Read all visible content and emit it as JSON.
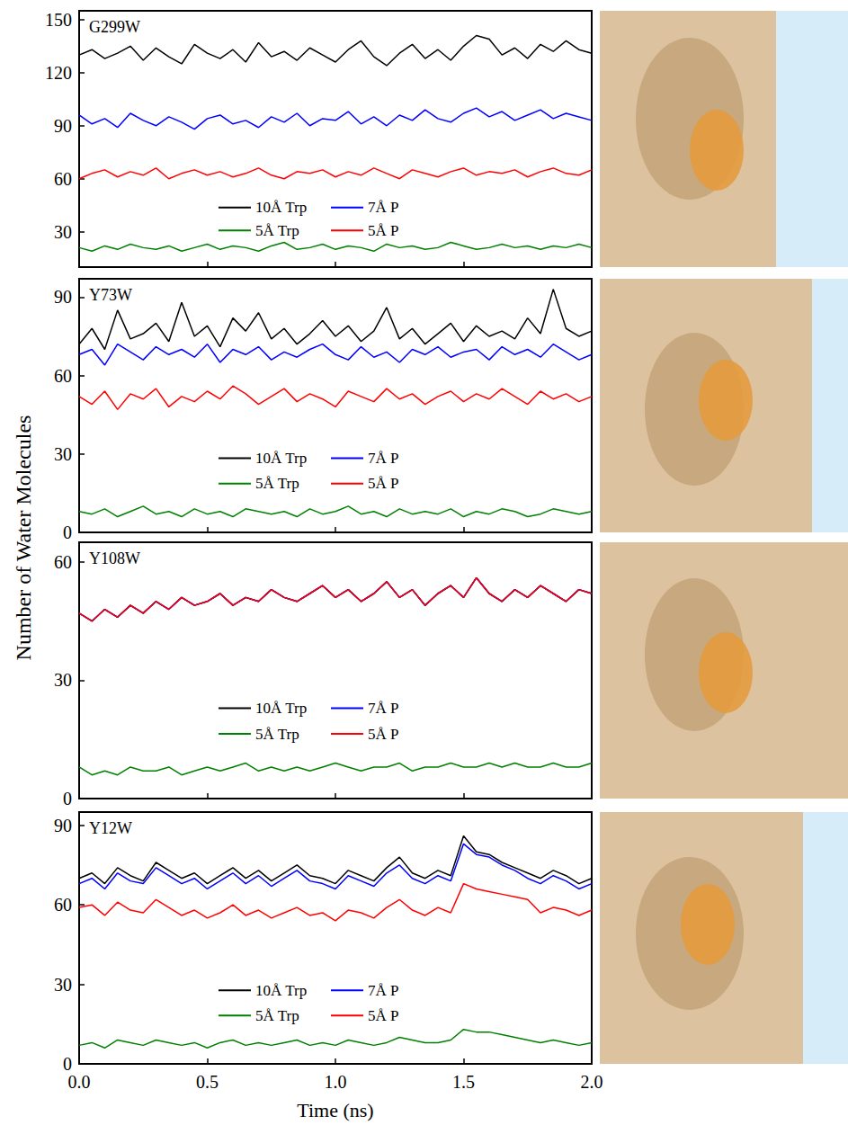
{
  "y_label": "Number of Water Molecules",
  "chart_data": [
    {
      "type": "line",
      "title": "G299W",
      "x": [
        0,
        0.05,
        0.1,
        0.15,
        0.2,
        0.25,
        0.3,
        0.35,
        0.4,
        0.45,
        0.5,
        0.55,
        0.6,
        0.65,
        0.7,
        0.75,
        0.8,
        0.85,
        0.9,
        0.95,
        1,
        1.05,
        1.1,
        1.15,
        1.2,
        1.25,
        1.3,
        1.35,
        1.4,
        1.45,
        1.5,
        1.55,
        1.6,
        1.65,
        1.7,
        1.75,
        1.8,
        1.85,
        1.9,
        1.95,
        2
      ],
      "xlim": [
        0,
        2
      ],
      "xticks": [
        0,
        0.5,
        1,
        1.5,
        2
      ],
      "ylim": [
        10,
        155
      ],
      "yticks": [
        30,
        60,
        90,
        120,
        150
      ],
      "tick_labels": "y",
      "grid": false,
      "legend": "bottom",
      "series": [
        {
          "name": "10Å Trp",
          "color": "#000000",
          "values": [
            130,
            133,
            128,
            131,
            135,
            127,
            134,
            129,
            125,
            136,
            131,
            128,
            133,
            126,
            137,
            129,
            132,
            127,
            134,
            130,
            126,
            133,
            138,
            129,
            124,
            131,
            136,
            128,
            133,
            127,
            135,
            141,
            139,
            130,
            134,
            128,
            136,
            132,
            138,
            133,
            131
          ]
        },
        {
          "name": "7Å P",
          "color": "#0000ff",
          "values": [
            96,
            91,
            94,
            89,
            97,
            93,
            90,
            95,
            92,
            88,
            94,
            96,
            91,
            93,
            89,
            95,
            92,
            97,
            90,
            94,
            93,
            98,
            91,
            95,
            90,
            96,
            93,
            99,
            94,
            92,
            97,
            100,
            95,
            98,
            93,
            96,
            99,
            94,
            97,
            95,
            93
          ]
        },
        {
          "name": "5Å Trp",
          "color": "#008000",
          "values": [
            21,
            19,
            22,
            20,
            23,
            21,
            20,
            22,
            19,
            21,
            23,
            20,
            22,
            21,
            19,
            22,
            24,
            20,
            21,
            23,
            20,
            22,
            21,
            19,
            23,
            21,
            22,
            20,
            21,
            24,
            22,
            20,
            21,
            23,
            21,
            22,
            20,
            22,
            21,
            23,
            21
          ]
        },
        {
          "name": "5Å P",
          "color": "#ff0000",
          "values": [
            60,
            63,
            65,
            61,
            64,
            62,
            66,
            60,
            63,
            65,
            62,
            64,
            61,
            63,
            66,
            62,
            60,
            64,
            63,
            65,
            61,
            64,
            62,
            66,
            63,
            60,
            65,
            63,
            61,
            64,
            66,
            62,
            64,
            63,
            65,
            61,
            64,
            66,
            63,
            62,
            65
          ]
        }
      ]
    },
    {
      "type": "line",
      "title": "Y73W",
      "x": [
        0,
        0.05,
        0.1,
        0.15,
        0.2,
        0.25,
        0.3,
        0.35,
        0.4,
        0.45,
        0.5,
        0.55,
        0.6,
        0.65,
        0.7,
        0.75,
        0.8,
        0.85,
        0.9,
        0.95,
        1,
        1.05,
        1.1,
        1.15,
        1.2,
        1.25,
        1.3,
        1.35,
        1.4,
        1.45,
        1.5,
        1.55,
        1.6,
        1.65,
        1.7,
        1.75,
        1.8,
        1.85,
        1.9,
        1.95,
        2
      ],
      "xlim": [
        0,
        2
      ],
      "xticks": [
        0,
        0.5,
        1,
        1.5,
        2
      ],
      "ylim": [
        0,
        97
      ],
      "yticks": [
        0,
        30,
        60,
        90
      ],
      "tick_labels": "y",
      "grid": false,
      "legend": "bottom",
      "series": [
        {
          "name": "10Å Trp",
          "color": "#000000",
          "values": [
            72,
            78,
            70,
            85,
            74,
            76,
            80,
            73,
            88,
            75,
            79,
            71,
            82,
            77,
            84,
            74,
            78,
            72,
            76,
            81,
            75,
            79,
            73,
            77,
            86,
            74,
            78,
            72,
            76,
            80,
            73,
            79,
            75,
            77,
            74,
            82,
            76,
            93,
            78,
            75,
            77
          ]
        },
        {
          "name": "7Å P",
          "color": "#0000ff",
          "values": [
            68,
            70,
            64,
            72,
            69,
            66,
            71,
            68,
            70,
            67,
            72,
            65,
            70,
            68,
            71,
            66,
            69,
            67,
            70,
            72,
            68,
            66,
            71,
            67,
            69,
            65,
            70,
            68,
            71,
            67,
            69,
            70,
            66,
            71,
            68,
            70,
            67,
            72,
            69,
            66,
            68
          ]
        },
        {
          "name": "5Å Trp",
          "color": "#008000",
          "values": [
            8,
            7,
            9,
            6,
            8,
            10,
            7,
            8,
            6,
            9,
            7,
            8,
            6,
            9,
            8,
            7,
            8,
            6,
            9,
            7,
            8,
            10,
            7,
            8,
            6,
            9,
            7,
            8,
            7,
            9,
            6,
            8,
            7,
            9,
            8,
            6,
            7,
            9,
            8,
            7,
            8
          ]
        },
        {
          "name": "5Å P",
          "color": "#ff0000",
          "values": [
            52,
            49,
            54,
            47,
            53,
            51,
            55,
            48,
            52,
            50,
            54,
            51,
            56,
            53,
            49,
            52,
            55,
            50,
            53,
            51,
            48,
            54,
            52,
            50,
            55,
            51,
            53,
            49,
            52,
            54,
            50,
            53,
            51,
            55,
            52,
            49,
            54,
            51,
            53,
            50,
            52
          ]
        }
      ]
    },
    {
      "type": "line",
      "title": "Y108W",
      "x": [
        0,
        0.05,
        0.1,
        0.15,
        0.2,
        0.25,
        0.3,
        0.35,
        0.4,
        0.45,
        0.5,
        0.55,
        0.6,
        0.65,
        0.7,
        0.75,
        0.8,
        0.85,
        0.9,
        0.95,
        1,
        1.05,
        1.1,
        1.15,
        1.2,
        1.25,
        1.3,
        1.35,
        1.4,
        1.45,
        1.5,
        1.55,
        1.6,
        1.65,
        1.7,
        1.75,
        1.8,
        1.85,
        1.9,
        1.95,
        2
      ],
      "xlim": [
        0,
        2
      ],
      "xticks": [
        0,
        0.5,
        1,
        1.5,
        2
      ],
      "ylim": [
        0,
        65
      ],
      "yticks": [
        0,
        30,
        60
      ],
      "tick_labels": "y",
      "grid": false,
      "legend": "bottom",
      "series": [
        {
          "name": "10Å Trp",
          "color": "#000000",
          "values": [
            47,
            45,
            48,
            46,
            49,
            47,
            50,
            48,
            51,
            49,
            50,
            52,
            49,
            51,
            50,
            53,
            51,
            50,
            52,
            54,
            51,
            53,
            50,
            52,
            55,
            51,
            53,
            49,
            52,
            54,
            51,
            56,
            52,
            50,
            53,
            51,
            54,
            52,
            50,
            53,
            52
          ]
        },
        {
          "name": "7Å P",
          "color": "#0000ff",
          "values": [
            47,
            45,
            48,
            46,
            49,
            47,
            50,
            48,
            51,
            49,
            50,
            52,
            49,
            51,
            50,
            53,
            51,
            50,
            52,
            54,
            51,
            53,
            50,
            52,
            55,
            51,
            53,
            49,
            52,
            54,
            51,
            56,
            52,
            50,
            53,
            51,
            54,
            52,
            50,
            53,
            52
          ]
        },
        {
          "name": "5Å Trp",
          "color": "#008000",
          "values": [
            8,
            6,
            7,
            6,
            8,
            7,
            7,
            8,
            6,
            7,
            8,
            7,
            8,
            9,
            7,
            8,
            7,
            8,
            7,
            8,
            9,
            8,
            7,
            8,
            8,
            9,
            7,
            8,
            8,
            9,
            8,
            8,
            9,
            8,
            9,
            8,
            8,
            9,
            8,
            8,
            9
          ]
        },
        {
          "name": "5Å P",
          "color": "#ff0000",
          "values": [
            47,
            45,
            48,
            46,
            49,
            47,
            50,
            48,
            51,
            49,
            50,
            52,
            49,
            51,
            50,
            53,
            51,
            50,
            52,
            54,
            51,
            53,
            50,
            52,
            55,
            51,
            53,
            49,
            52,
            54,
            51,
            56,
            52,
            50,
            53,
            51,
            54,
            52,
            50,
            53,
            52
          ]
        }
      ]
    },
    {
      "type": "line",
      "title": "Y12W",
      "x_label": "Time (ns)",
      "x": [
        0,
        0.05,
        0.1,
        0.15,
        0.2,
        0.25,
        0.3,
        0.35,
        0.4,
        0.45,
        0.5,
        0.55,
        0.6,
        0.65,
        0.7,
        0.75,
        0.8,
        0.85,
        0.9,
        0.95,
        1,
        1.05,
        1.1,
        1.15,
        1.2,
        1.25,
        1.3,
        1.35,
        1.4,
        1.45,
        1.5,
        1.55,
        1.6,
        1.65,
        1.7,
        1.75,
        1.8,
        1.85,
        1.9,
        1.95,
        2
      ],
      "xlim": [
        0,
        2
      ],
      "xticks": [
        {
          "value": 0,
          "label": "0.0"
        },
        {
          "value": 0.5,
          "label": "0.5"
        },
        {
          "value": 1,
          "label": "1.0"
        },
        {
          "value": 1.5,
          "label": "1.5"
        },
        {
          "value": 2,
          "label": "2.0"
        }
      ],
      "ylim": [
        0,
        95
      ],
      "yticks": [
        0,
        30,
        60,
        90
      ],
      "grid": false,
      "legend": "bottom",
      "series": [
        {
          "name": "10Å Trp",
          "color": "#000000",
          "values": [
            70,
            72,
            68,
            74,
            71,
            69,
            76,
            73,
            70,
            72,
            68,
            71,
            74,
            70,
            73,
            69,
            72,
            75,
            71,
            70,
            68,
            73,
            71,
            69,
            74,
            78,
            72,
            70,
            73,
            71,
            86,
            80,
            79,
            76,
            74,
            72,
            70,
            73,
            71,
            68,
            70
          ]
        },
        {
          "name": "7Å P",
          "color": "#0000ff",
          "values": [
            68,
            70,
            66,
            72,
            69,
            68,
            74,
            71,
            68,
            70,
            66,
            69,
            72,
            68,
            71,
            67,
            70,
            73,
            69,
            68,
            66,
            71,
            69,
            67,
            72,
            75,
            70,
            68,
            71,
            69,
            83,
            79,
            78,
            75,
            73,
            70,
            68,
            71,
            69,
            66,
            68
          ]
        },
        {
          "name": "5Å Trp",
          "color": "#008000",
          "values": [
            7,
            8,
            6,
            9,
            8,
            7,
            9,
            8,
            7,
            8,
            6,
            8,
            9,
            7,
            8,
            7,
            8,
            9,
            7,
            8,
            7,
            9,
            8,
            7,
            8,
            10,
            9,
            8,
            8,
            9,
            13,
            12,
            12,
            11,
            10,
            9,
            8,
            9,
            8,
            7,
            8
          ]
        },
        {
          "name": "5Å P",
          "color": "#ff0000",
          "values": [
            59,
            60,
            56,
            61,
            58,
            57,
            62,
            59,
            56,
            58,
            55,
            57,
            60,
            56,
            58,
            55,
            57,
            59,
            56,
            57,
            54,
            58,
            57,
            55,
            59,
            62,
            58,
            56,
            59,
            57,
            68,
            66,
            65,
            64,
            63,
            62,
            57,
            59,
            58,
            56,
            58
          ]
        }
      ]
    }
  ]
}
